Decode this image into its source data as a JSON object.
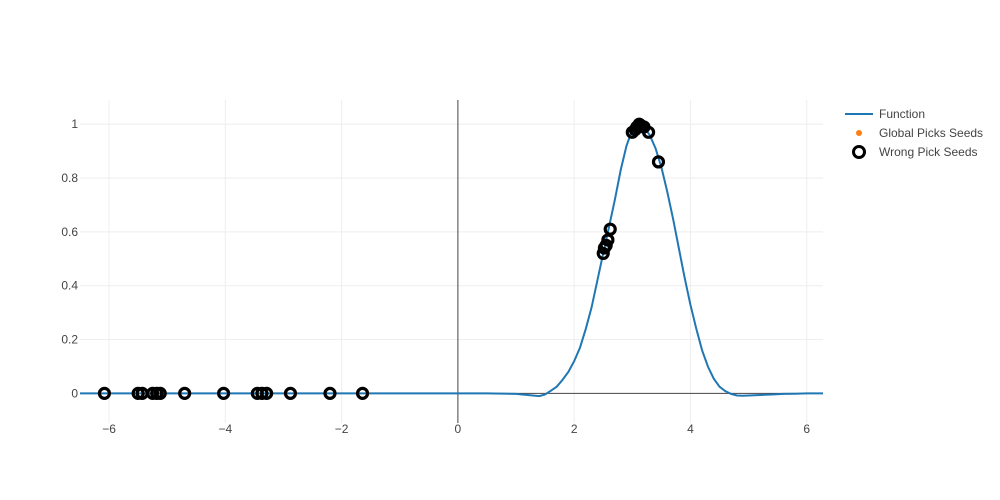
{
  "chart_data": {
    "type": "scatter",
    "xlim": [
      -6.5,
      6.28
    ],
    "ylim": [
      -0.11,
      1.09
    ],
    "grid": true,
    "legend_position": "top-right",
    "x_ticks": [
      -6,
      -4,
      -2,
      0,
      2,
      4,
      6
    ],
    "x_tick_labels": [
      "−6",
      "−4",
      "−2",
      "0",
      "2",
      "4",
      "6"
    ],
    "y_ticks": [
      0,
      0.2,
      0.4,
      0.6,
      0.8,
      1
    ],
    "y_tick_labels": [
      "0",
      "0.2",
      "0.4",
      "0.6",
      "0.8",
      "1"
    ],
    "series": [
      {
        "name": "Function",
        "mode": "line",
        "color": "#1f77b4",
        "x": [
          -6.5,
          -5,
          -4,
          -3,
          -2,
          -1,
          0,
          0.5,
          1,
          1.2,
          1.4,
          1.5,
          1.6,
          1.7,
          1.8,
          1.9,
          2.0,
          2.1,
          2.2,
          2.3,
          2.4,
          2.5,
          2.6,
          2.7,
          2.8,
          2.9,
          3.0,
          3.1,
          3.2,
          3.3,
          3.4,
          3.5,
          3.6,
          3.7,
          3.8,
          3.9,
          4.0,
          4.1,
          4.2,
          4.3,
          4.4,
          4.5,
          4.6,
          4.7,
          4.8,
          4.9,
          5.0,
          5.2,
          5.4,
          5.6,
          5.8,
          6.0,
          6.28
        ],
        "y": [
          0,
          0,
          0,
          0,
          0,
          0,
          0,
          0,
          -0.002,
          -0.006,
          -0.01,
          -0.004,
          0.01,
          0.025,
          0.05,
          0.08,
          0.12,
          0.17,
          0.24,
          0.32,
          0.42,
          0.52,
          0.62,
          0.72,
          0.83,
          0.92,
          0.98,
          1.0,
          0.99,
          0.96,
          0.91,
          0.84,
          0.75,
          0.65,
          0.54,
          0.43,
          0.33,
          0.24,
          0.16,
          0.1,
          0.055,
          0.025,
          0.008,
          -0.002,
          -0.008,
          -0.009,
          -0.008,
          -0.006,
          -0.004,
          -0.002,
          -0.001,
          0,
          0
        ]
      },
      {
        "name": "Global Picks Seeds",
        "mode": "markers",
        "color": "#ff7f0e",
        "x": [],
        "y": []
      },
      {
        "name": "Wrong Pick Seeds",
        "mode": "markers",
        "color": "#000000",
        "x": [
          -6.08,
          -5.5,
          -5.43,
          -5.25,
          -5.18,
          -5.12,
          -4.7,
          -4.03,
          -3.45,
          -3.37,
          -3.29,
          -2.88,
          -2.2,
          -1.64,
          2.5,
          2.52,
          2.55,
          2.58,
          2.62,
          3.0,
          3.05,
          3.08,
          3.12,
          3.15,
          3.2,
          3.28,
          3.45
        ],
        "y": [
          0,
          0,
          0,
          0,
          0,
          0,
          0,
          0,
          0,
          0,
          0,
          0,
          0,
          0,
          0.52,
          0.54,
          0.55,
          0.57,
          0.61,
          0.97,
          0.98,
          0.99,
          1.0,
          0.995,
          0.99,
          0.97,
          0.86
        ]
      }
    ]
  },
  "legend": {
    "items": [
      {
        "label": "Function"
      },
      {
        "label": "Global Picks Seeds"
      },
      {
        "label": "Wrong Pick Seeds"
      }
    ]
  }
}
